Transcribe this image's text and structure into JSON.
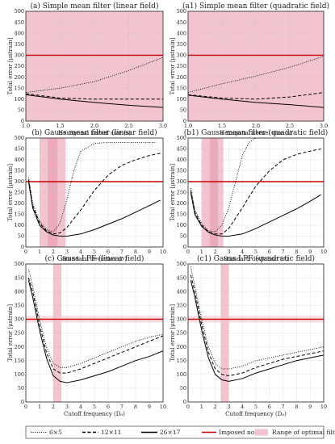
{
  "chart_data": [
    {
      "title": "(a) Simple mean filter (linear field)",
      "type": "line",
      "xlabel": "Hexagonal kernel size (s)",
      "ylabel": "Total error [μstrain]",
      "xlim": [
        1.0,
        3.0
      ],
      "ylim": [
        0,
        500
      ],
      "xticks": [
        "1.0",
        "1.5",
        "2.0",
        "2.5",
        "3.0"
      ],
      "yticks": [
        "0",
        "50",
        "100",
        "150",
        "200",
        "250",
        "300",
        "350",
        "400",
        "450",
        "500"
      ],
      "grid": true,
      "imposed_noise": 300,
      "optimal_range": [
        1.0,
        3.0
      ],
      "series": [
        {
          "name": "6×5",
          "x": [
            1.0,
            1.5,
            2.0,
            2.5,
            3.0
          ],
          "y": [
            130,
            150,
            180,
            230,
            290
          ]
        },
        {
          "name": "12×11",
          "x": [
            1.0,
            1.5,
            2.0,
            2.5,
            3.0
          ],
          "y": [
            125,
            105,
            100,
            100,
            100
          ]
        },
        {
          "name": "26×17",
          "x": [
            1.0,
            1.5,
            2.0,
            2.5,
            3.0
          ],
          "y": [
            120,
            100,
            85,
            72,
            62
          ]
        }
      ]
    },
    {
      "title": "(a1) Simple mean filter (quadratic field)",
      "type": "line",
      "xlabel": "Hexagonal kernel size (s)",
      "ylabel": "Total error [μstrain]",
      "xlim": [
        1.0,
        3.0
      ],
      "ylim": [
        0,
        500
      ],
      "xticks": [
        "1.0",
        "1.5",
        "2.0",
        "2.5",
        "3.0"
      ],
      "yticks": [
        "0",
        "50",
        "100",
        "150",
        "200",
        "250",
        "300",
        "350",
        "400",
        "450",
        "500"
      ],
      "grid": true,
      "imposed_noise": 300,
      "optimal_range": [
        1.0,
        3.0
      ],
      "series": [
        {
          "name": "6×5",
          "x": [
            1.0,
            1.5,
            2.0,
            2.5,
            3.0
          ],
          "y": [
            130,
            170,
            205,
            245,
            295
          ]
        },
        {
          "name": "12×11",
          "x": [
            1.0,
            1.5,
            2.0,
            2.5,
            3.0
          ],
          "y": [
            120,
            105,
            100,
            110,
            130
          ]
        },
        {
          "name": "26×17",
          "x": [
            1.0,
            1.5,
            2.0,
            2.5,
            3.0
          ],
          "y": [
            118,
            100,
            85,
            75,
            62
          ]
        }
      ]
    },
    {
      "title": "(b) Gauss mean filter (linear field)",
      "type": "line",
      "xlabel": "Standard deviation (σ)",
      "ylabel": "Total error [μstrain]",
      "xlim": [
        0,
        10
      ],
      "ylim": [
        0,
        500
      ],
      "xticks": [
        "0",
        "1",
        "2",
        "3",
        "4",
        "5",
        "6",
        "7",
        "8",
        "9",
        "10"
      ],
      "yticks": [
        "0",
        "50",
        "100",
        "150",
        "200",
        "250",
        "300",
        "350",
        "400",
        "450",
        "500"
      ],
      "grid": true,
      "imposed_noise": 300,
      "optimal_range": [
        1.0,
        2.9
      ],
      "highlight_range": [
        1.6,
        2.3
      ],
      "series": [
        {
          "name": "6×5",
          "x": [
            0.2,
            0.5,
            1.0,
            1.5,
            2.0,
            2.5,
            3.0,
            3.5,
            4.0,
            5.0,
            6.0,
            7.0,
            8.0,
            9.5
          ],
          "y": [
            320,
            200,
            120,
            80,
            70,
            110,
            220,
            350,
            440,
            475,
            480,
            480,
            480,
            480
          ]
        },
        {
          "name": "12×11",
          "x": [
            0.2,
            0.5,
            1.0,
            1.5,
            2.0,
            2.5,
            3.0,
            4.0,
            5.0,
            6.0,
            7.0,
            8.0,
            9.0,
            9.8
          ],
          "y": [
            310,
            190,
            110,
            75,
            60,
            65,
            90,
            170,
            260,
            330,
            375,
            400,
            420,
            430
          ]
        },
        {
          "name": "26×17",
          "x": [
            0.2,
            0.5,
            1.0,
            1.5,
            2.0,
            2.5,
            3.0,
            4.0,
            5.0,
            6.0,
            7.0,
            8.0,
            9.0,
            9.8
          ],
          "y": [
            300,
            180,
            100,
            70,
            55,
            50,
            50,
            60,
            80,
            105,
            130,
            160,
            190,
            215
          ]
        }
      ]
    },
    {
      "title": "(b1) Gauss mean filter (quadratic field)",
      "type": "line",
      "xlabel": "Standard deviation (σ)",
      "ylabel": "Total error [μstrain]",
      "xlim": [
        0,
        10
      ],
      "ylim": [
        0,
        500
      ],
      "xticks": [
        "0",
        "1",
        "2",
        "3",
        "4",
        "5",
        "6",
        "7",
        "8",
        "9",
        "10"
      ],
      "yticks": [
        "0",
        "50",
        "100",
        "150",
        "200",
        "250",
        "300",
        "350",
        "400",
        "450",
        "500"
      ],
      "grid": true,
      "imposed_noise": 300,
      "optimal_range": [
        1.0,
        2.6
      ],
      "highlight_range": [
        1.6,
        2.2
      ],
      "series": [
        {
          "name": "6×5",
          "x": [
            0.2,
            0.5,
            1.0,
            1.5,
            2.0,
            2.5,
            3.0,
            3.5,
            4.0,
            4.5,
            5.0,
            7.0,
            9.8
          ],
          "y": [
            270,
            170,
            110,
            75,
            70,
            100,
            180,
            300,
            420,
            480,
            500,
            500,
            500
          ]
        },
        {
          "name": "12×11",
          "x": [
            0.2,
            0.5,
            1.0,
            1.5,
            2.0,
            2.5,
            3.0,
            4.0,
            5.0,
            6.0,
            7.0,
            8.0,
            9.0,
            9.8
          ],
          "y": [
            260,
            160,
            100,
            70,
            60,
            60,
            85,
            180,
            280,
            350,
            400,
            425,
            440,
            450
          ]
        },
        {
          "name": "26×17",
          "x": [
            0.2,
            0.5,
            1.0,
            1.5,
            2.0,
            2.5,
            3.0,
            4.0,
            5.0,
            6.0,
            7.0,
            8.0,
            9.0,
            9.8
          ],
          "y": [
            250,
            150,
            95,
            68,
            55,
            50,
            50,
            60,
            85,
            115,
            145,
            175,
            210,
            240
          ]
        }
      ]
    },
    {
      "title": "(c) Gauss LPF (linear field)",
      "type": "line",
      "xlabel": "Cutoff frequency (D₀)",
      "ylabel": "Total error [μstrain]",
      "xlim": [
        0,
        10
      ],
      "ylim": [
        0,
        500
      ],
      "xticks": [
        "0",
        "1",
        "2",
        "3",
        "4",
        "5",
        "6",
        "7",
        "8",
        "9",
        "10"
      ],
      "yticks": [
        "0",
        "50",
        "100",
        "150",
        "200",
        "250",
        "300",
        "350",
        "400",
        "450",
        "500"
      ],
      "grid": true,
      "imposed_noise": 300,
      "optimal_range": [
        2.0,
        2.6
      ],
      "highlight_range": [
        0,
        10
      ],
      "series": [
        {
          "name": "6×5",
          "x": [
            0.2,
            0.5,
            1.0,
            1.5,
            2.0,
            2.5,
            3.0,
            4.0,
            5.0,
            6.0,
            7.0,
            8.0,
            9.0,
            10.0
          ],
          "y": [
            480,
            420,
            300,
            200,
            140,
            125,
            125,
            140,
            160,
            180,
            200,
            220,
            235,
            245
          ]
        },
        {
          "name": "12×11",
          "x": [
            0.2,
            0.5,
            1.0,
            1.5,
            2.0,
            2.5,
            3.0,
            4.0,
            5.0,
            6.0,
            7.0,
            8.0,
            9.0,
            10.0
          ],
          "y": [
            450,
            400,
            280,
            180,
            120,
            105,
            105,
            120,
            140,
            160,
            180,
            200,
            220,
            240
          ]
        },
        {
          "name": "26×17",
          "x": [
            0.2,
            0.5,
            1.0,
            1.5,
            2.0,
            2.5,
            3.0,
            4.0,
            5.0,
            6.0,
            7.0,
            8.0,
            9.0,
            10.0
          ],
          "y": [
            440,
            380,
            260,
            160,
            95,
            75,
            70,
            80,
            95,
            110,
            130,
            150,
            165,
            185
          ]
        }
      ]
    },
    {
      "title": "(c1) Gauss LPF (quadratic field)",
      "type": "line",
      "xlabel": "Cutoff frequency (D₀)",
      "ylabel": "Total error [μstrain]",
      "xlim": [
        0,
        10
      ],
      "ylim": [
        0,
        500
      ],
      "xticks": [
        "0",
        "1",
        "2",
        "3",
        "4",
        "5",
        "6",
        "7",
        "8",
        "9",
        "10"
      ],
      "yticks": [
        "0",
        "50",
        "100",
        "150",
        "200",
        "250",
        "300",
        "350",
        "400",
        "450",
        "500"
      ],
      "grid": true,
      "imposed_noise": 300,
      "optimal_range": [
        2.4,
        3.0
      ],
      "highlight_range": [
        0,
        10
      ],
      "series": [
        {
          "name": "6×5",
          "x": [
            0.2,
            0.5,
            1.0,
            1.5,
            2.0,
            2.5,
            3.0,
            4.0,
            5.0,
            6.0,
            7.0,
            8.0,
            9.0,
            10.0
          ],
          "y": [
            490,
            420,
            300,
            200,
            140,
            120,
            120,
            130,
            150,
            160,
            170,
            180,
            190,
            200
          ]
        },
        {
          "name": "12×11",
          "x": [
            0.2,
            0.5,
            1.0,
            1.5,
            2.0,
            2.5,
            3.0,
            4.0,
            5.0,
            6.0,
            7.0,
            8.0,
            9.0,
            10.0
          ],
          "y": [
            460,
            400,
            280,
            180,
            120,
            100,
            95,
            105,
            125,
            140,
            155,
            165,
            175,
            185
          ]
        },
        {
          "name": "26×17",
          "x": [
            0.2,
            0.5,
            1.0,
            1.5,
            2.0,
            2.5,
            3.0,
            4.0,
            5.0,
            6.0,
            7.0,
            8.0,
            9.0,
            10.0
          ],
          "y": [
            440,
            380,
            260,
            160,
            100,
            80,
            75,
            85,
            105,
            120,
            135,
            150,
            160,
            170
          ]
        }
      ]
    }
  ],
  "legend": {
    "items": [
      {
        "label": "6×5",
        "style": "dotted"
      },
      {
        "label": "12×11",
        "style": "dashed"
      },
      {
        "label": "26×17",
        "style": "solid"
      },
      {
        "label": "Imposed noise",
        "style": "red-line"
      },
      {
        "label": "Range of optimal filter",
        "style": "pink-box"
      }
    ]
  },
  "colors": {
    "optimal_fill": "#f2c4cf",
    "highlight_fill": "#e48fa3",
    "imposed_noise": "#cc0000",
    "curve": "#000000",
    "grid": "#bbbbbb"
  }
}
